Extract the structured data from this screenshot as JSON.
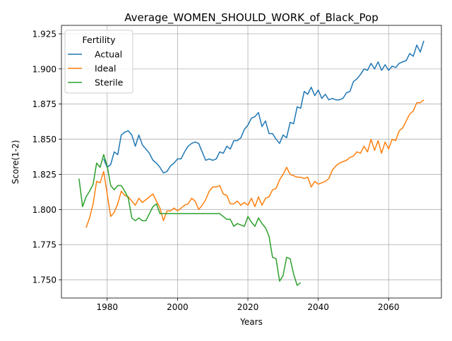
{
  "chart_data": {
    "type": "line",
    "title": "Average_WOMEN_SHOULD_WORK_of_Black_Pop",
    "xlabel": "Years",
    "ylabel": "Score(1-2)",
    "xlim": [
      1967,
      2075
    ],
    "ylim": [
      1.737,
      1.931
    ],
    "xticks": [
      1980,
      2000,
      2020,
      2040,
      2060
    ],
    "yticks": [
      1.75,
      1.775,
      1.8,
      1.825,
      1.85,
      1.875,
      1.9,
      1.925
    ],
    "xtick_labels": [
      "1980",
      "2000",
      "2020",
      "2040",
      "2060"
    ],
    "ytick_labels": [
      "1.750",
      "1.775",
      "1.800",
      "1.825",
      "1.850",
      "1.875",
      "1.900",
      "1.925"
    ],
    "grid": true,
    "legend": {
      "title": "Fertility",
      "placement": "top-left"
    },
    "series": [
      {
        "name": "Actual",
        "color": "#1f77b4",
        "x": [
          1979,
          1980,
          1981,
          1982,
          1983,
          1984,
          1985,
          1986,
          1987,
          1988,
          1989,
          1990,
          1991,
          1992,
          1993,
          1994,
          1995,
          1996,
          1997,
          1998,
          1999,
          2000,
          2001,
          2002,
          2003,
          2004,
          2005,
          2006,
          2007,
          2008,
          2009,
          2010,
          2011,
          2012,
          2013,
          2014,
          2015,
          2016,
          2017,
          2018,
          2019,
          2020,
          2021,
          2022,
          2023,
          2024,
          2025,
          2026,
          2027,
          2028,
          2029,
          2030,
          2031,
          2032,
          2033,
          2034,
          2035,
          2036,
          2037,
          2038,
          2039,
          2040,
          2041,
          2042,
          2043,
          2044,
          2045,
          2046,
          2047,
          2048,
          2049,
          2050,
          2051,
          2052,
          2053,
          2054,
          2055,
          2056,
          2057,
          2058,
          2059,
          2060,
          2061,
          2062,
          2063,
          2064,
          2065,
          2066,
          2067,
          2068,
          2069,
          2070
        ],
        "y": [
          1.836,
          1.83,
          1.832,
          1.841,
          1.839,
          1.853,
          1.855,
          1.856,
          1.853,
          1.845,
          1.853,
          1.846,
          1.843,
          1.84,
          1.835,
          1.833,
          1.83,
          1.826,
          1.827,
          1.831,
          1.833,
          1.836,
          1.836,
          1.841,
          1.845,
          1.847,
          1.848,
          1.847,
          1.841,
          1.835,
          1.836,
          1.835,
          1.836,
          1.841,
          1.84,
          1.845,
          1.843,
          1.849,
          1.849,
          1.851,
          1.857,
          1.86,
          1.865,
          1.866,
          1.869,
          1.859,
          1.863,
          1.854,
          1.854,
          1.85,
          1.847,
          1.853,
          1.851,
          1.862,
          1.861,
          1.873,
          1.872,
          1.884,
          1.882,
          1.887,
          1.881,
          1.885,
          1.879,
          1.882,
          1.878,
          1.879,
          1.878,
          1.878,
          1.879,
          1.883,
          1.884,
          1.891,
          1.893,
          1.896,
          1.9,
          1.899,
          1.904,
          1.9,
          1.905,
          1.899,
          1.903,
          1.899,
          1.902,
          1.901,
          1.904,
          1.905,
          1.906,
          1.911,
          1.909,
          1.917,
          1.912,
          1.92
        ]
      },
      {
        "name": "Ideal",
        "color": "#ff7f0e",
        "x": [
          1974,
          1975,
          1976,
          1977,
          1978,
          1979,
          1980,
          1981,
          1982,
          1983,
          1984,
          1985,
          1986,
          1987,
          1988,
          1989,
          1990,
          1991,
          1992,
          1993,
          1994,
          1995,
          1996,
          1997,
          1998,
          1999,
          2000,
          2001,
          2002,
          2003,
          2004,
          2005,
          2006,
          2007,
          2008,
          2009,
          2010,
          2011,
          2012,
          2013,
          2014,
          2015,
          2016,
          2017,
          2018,
          2019,
          2020,
          2021,
          2022,
          2023,
          2024,
          2025,
          2026,
          2027,
          2028,
          2029,
          2030,
          2031,
          2032,
          2033,
          2034,
          2035,
          2036,
          2037,
          2038,
          2039,
          2040,
          2041,
          2042,
          2043,
          2044,
          2045,
          2046,
          2047,
          2048,
          2049,
          2050,
          2051,
          2052,
          2053,
          2054,
          2055,
          2056,
          2057,
          2058,
          2059,
          2060,
          2061,
          2062,
          2063,
          2064,
          2065,
          2066,
          2067,
          2068,
          2069,
          2070
        ],
        "y": [
          1.787,
          1.794,
          1.804,
          1.82,
          1.819,
          1.827,
          1.811,
          1.795,
          1.798,
          1.804,
          1.813,
          1.81,
          1.809,
          1.806,
          1.803,
          1.808,
          1.805,
          1.807,
          1.809,
          1.811,
          1.806,
          1.801,
          1.792,
          1.799,
          1.799,
          1.801,
          1.799,
          1.801,
          1.803,
          1.804,
          1.808,
          1.806,
          1.8,
          1.803,
          1.807,
          1.813,
          1.816,
          1.816,
          1.817,
          1.811,
          1.81,
          1.804,
          1.804,
          1.806,
          1.803,
          1.805,
          1.803,
          1.808,
          1.802,
          1.809,
          1.803,
          1.808,
          1.809,
          1.814,
          1.815,
          1.821,
          1.825,
          1.83,
          1.825,
          1.824,
          1.823,
          1.823,
          1.822,
          1.823,
          1.816,
          1.82,
          1.818,
          1.819,
          1.82,
          1.822,
          1.828,
          1.831,
          1.833,
          1.834,
          1.835,
          1.837,
          1.838,
          1.841,
          1.84,
          1.845,
          1.841,
          1.85,
          1.842,
          1.849,
          1.84,
          1.848,
          1.843,
          1.85,
          1.849,
          1.856,
          1.858,
          1.863,
          1.868,
          1.87,
          1.876,
          1.876,
          1.878
        ]
      },
      {
        "name": "Sterile",
        "color": "#2ca02c",
        "x": [
          1972,
          1973,
          1974,
          1975,
          1976,
          1977,
          1978,
          1979,
          1980,
          1981,
          1982,
          1983,
          1984,
          1985,
          1986,
          1987,
          1988,
          1989,
          1990,
          1991,
          1992,
          1993,
          1994,
          1995,
          1996,
          1997,
          1998,
          1999,
          2000,
          2001,
          2002,
          2003,
          2004,
          2005,
          2006,
          2007,
          2008,
          2009,
          2010,
          2011,
          2012,
          2013,
          2014,
          2015,
          2016,
          2017,
          2018,
          2019,
          2020,
          2021,
          2022,
          2023,
          2024,
          2025,
          2026,
          2027,
          2028,
          2029,
          2030,
          2031,
          2032,
          2033,
          2034,
          2035
        ],
        "y": [
          1.822,
          1.802,
          1.809,
          1.813,
          1.818,
          1.833,
          1.83,
          1.839,
          1.831,
          1.817,
          1.814,
          1.817,
          1.817,
          1.813,
          1.808,
          1.794,
          1.792,
          1.794,
          1.792,
          1.792,
          1.797,
          1.802,
          1.804,
          1.797,
          1.797,
          1.797,
          1.797,
          1.797,
          1.797,
          1.797,
          1.797,
          1.797,
          1.797,
          1.797,
          1.797,
          1.797,
          1.797,
          1.797,
          1.797,
          1.797,
          1.797,
          1.795,
          1.793,
          1.793,
          1.788,
          1.79,
          1.789,
          1.788,
          1.795,
          1.791,
          1.788,
          1.794,
          1.79,
          1.787,
          1.781,
          1.766,
          1.765,
          1.749,
          1.753,
          1.766,
          1.765,
          1.754,
          1.746,
          1.748
        ]
      }
    ]
  }
}
